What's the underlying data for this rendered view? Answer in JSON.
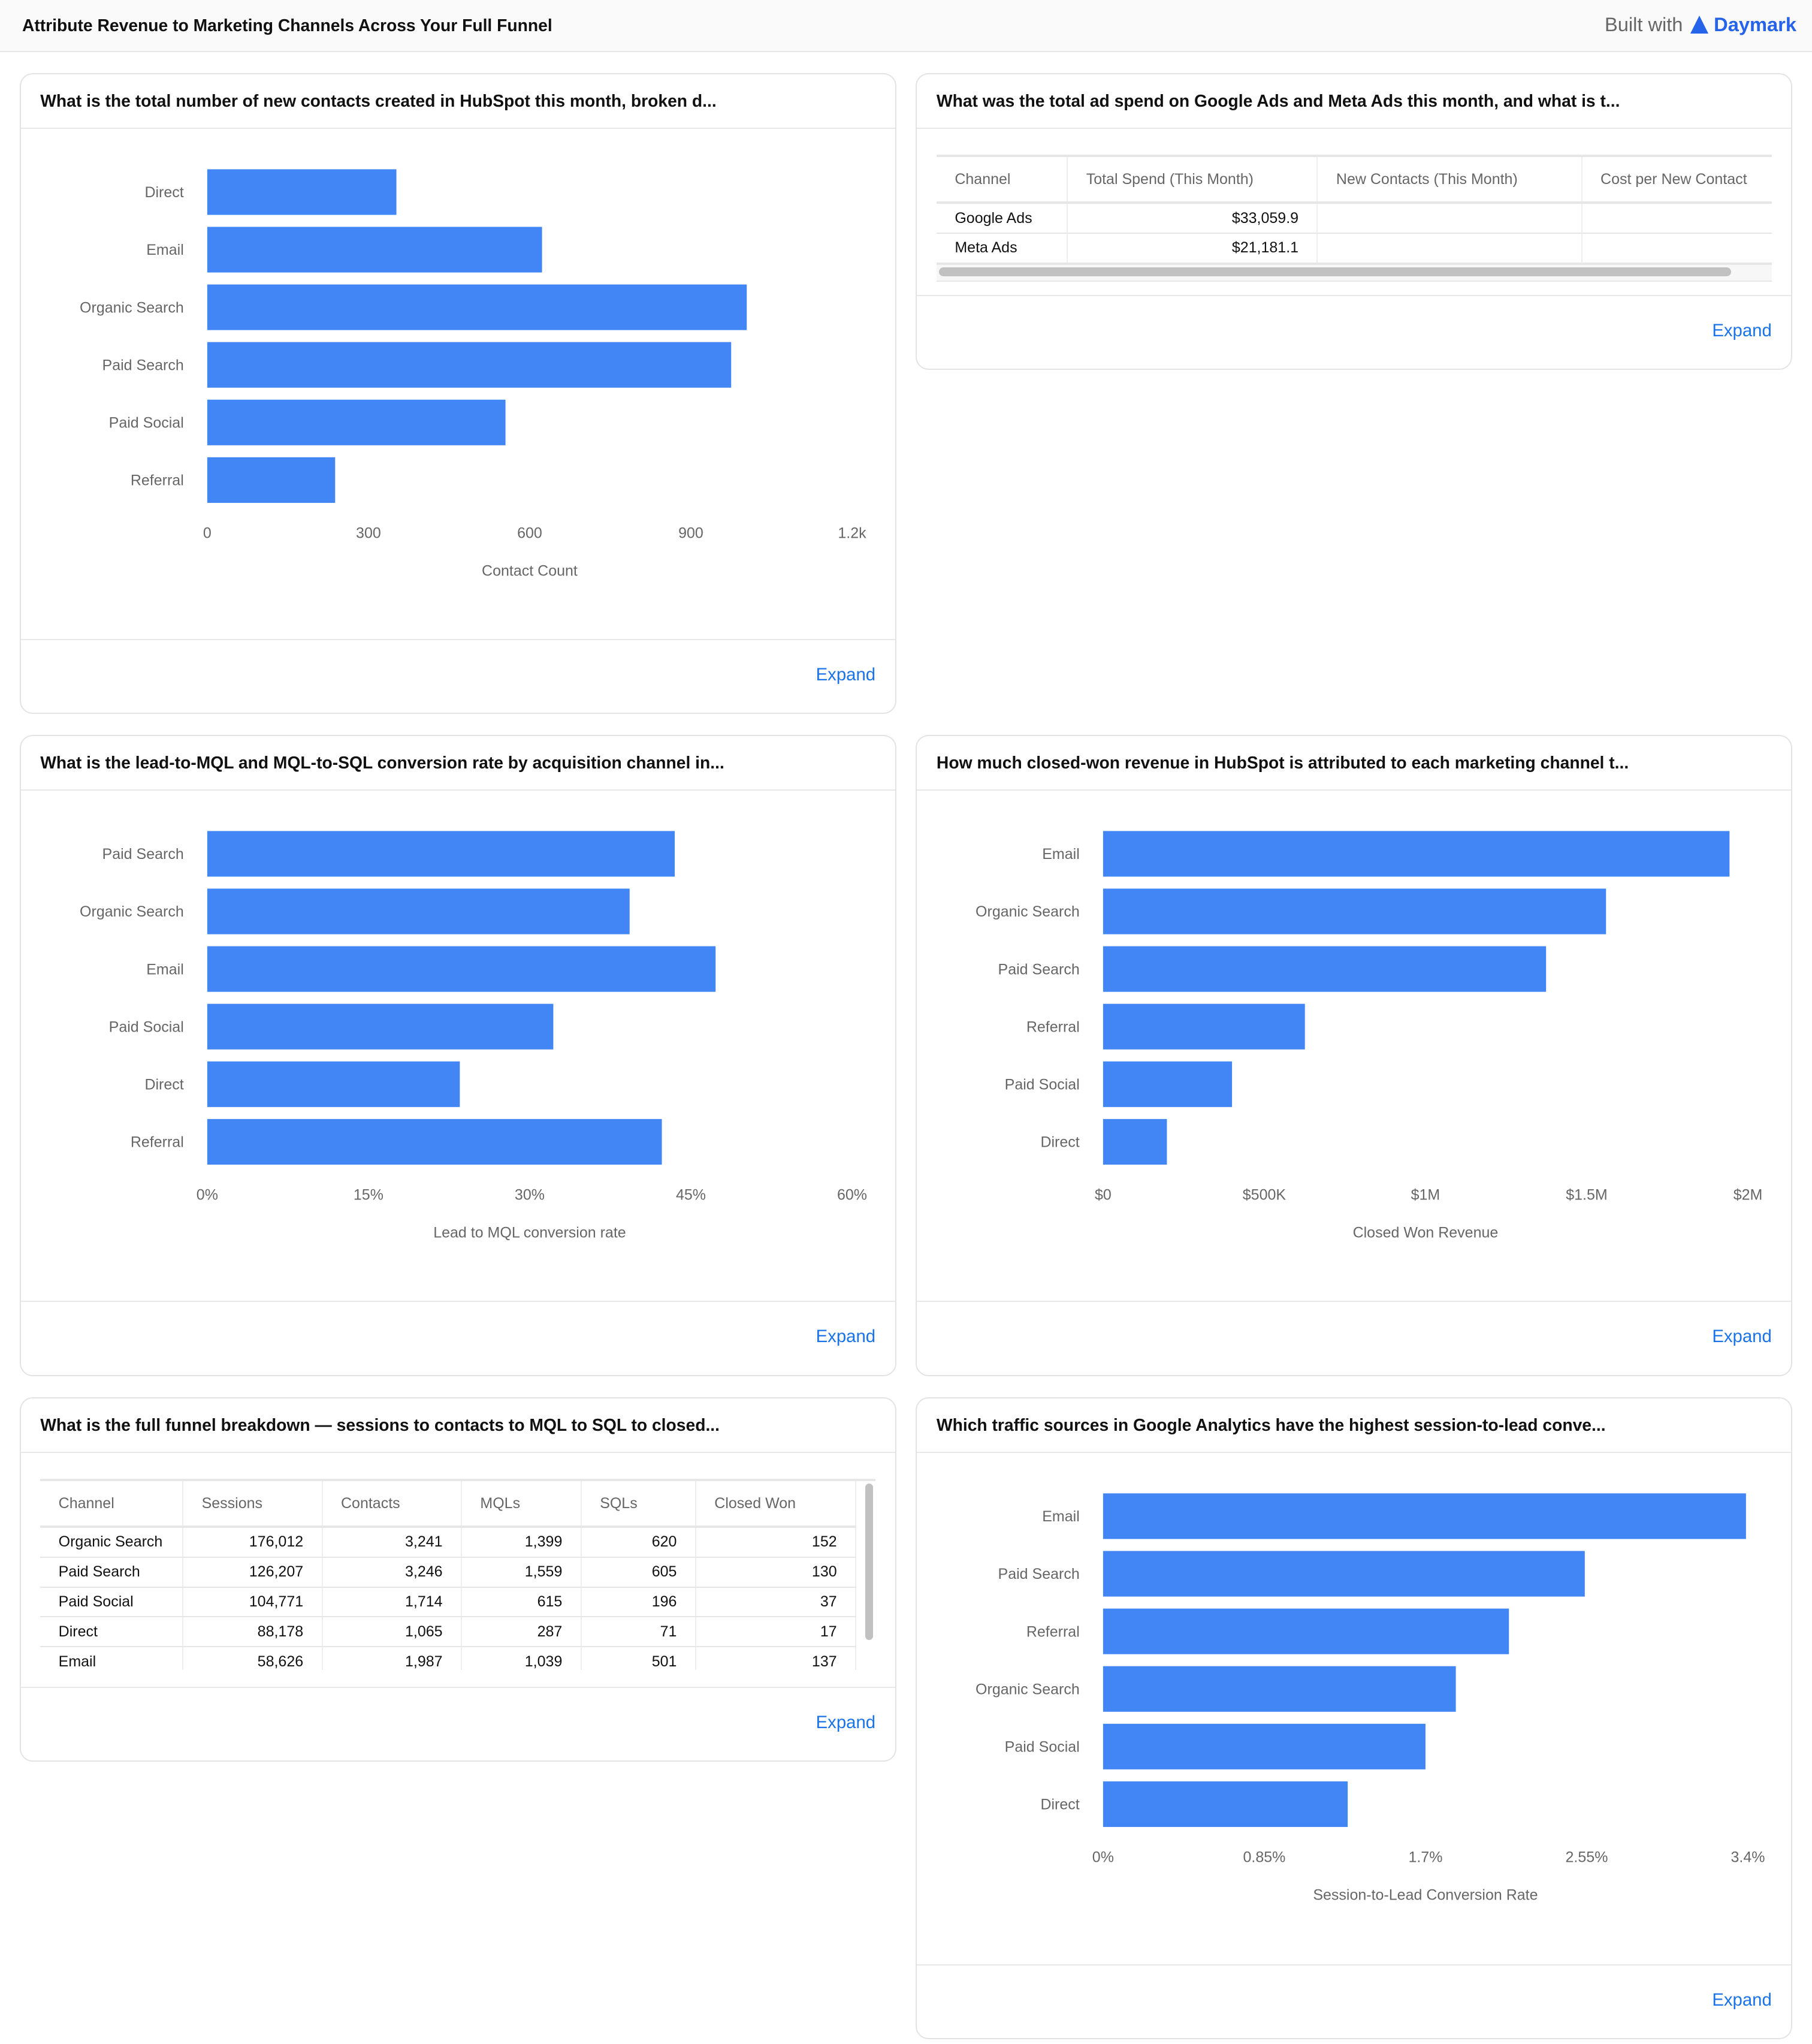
{
  "header": {
    "title": "Attribute Revenue to Marketing Channels Across Your Full Funnel",
    "built_with": "Built with",
    "brand": "Daymark"
  },
  "expand_label": "Expand",
  "colors": {
    "bar": "#4285f4",
    "link": "#1a73e8",
    "brand": "#2563eb"
  },
  "cards": {
    "contacts": {
      "title": "What is the total number of new contacts created in HubSpot this month, broken d..."
    },
    "adspend": {
      "title": "What was the total ad spend on Google Ads and Meta Ads this month, and what is t...",
      "columns": [
        "Channel",
        "Total Spend (This Month)",
        "New Contacts (This Month)",
        "Cost per New Contact"
      ],
      "rows": [
        [
          "Google Ads",
          "$33,059.9",
          "",
          ""
        ],
        [
          "Meta Ads",
          "$21,181.1",
          "",
          ""
        ]
      ]
    },
    "mql": {
      "title": "What is the lead-to-MQL and MQL-to-SQL conversion rate by acquisition channel in..."
    },
    "revenue": {
      "title": "How much closed-won revenue in HubSpot is attributed to each marketing channel t..."
    },
    "funnel": {
      "title": "What is the full funnel breakdown — sessions to contacts to MQL to SQL to closed...",
      "columns": [
        "Channel",
        "Sessions",
        "Contacts",
        "MQLs",
        "SQLs",
        "Closed Won"
      ],
      "rows": [
        [
          "Organic Search",
          "176,012",
          "3,241",
          "1,399",
          "620",
          "152"
        ],
        [
          "Paid Search",
          "126,207",
          "3,246",
          "1,559",
          "605",
          "130"
        ],
        [
          "Paid Social",
          "104,771",
          "1,714",
          "615",
          "196",
          "37"
        ],
        [
          "Direct",
          "88,178",
          "1,065",
          "287",
          "71",
          "17"
        ],
        [
          "Email",
          "58,626",
          "1,987",
          "1,039",
          "501",
          "137"
        ]
      ]
    },
    "traffic": {
      "title": "Which traffic sources in Google Analytics have the highest session-to-lead conve..."
    }
  },
  "chart_data": [
    {
      "type": "bar",
      "orientation": "horizontal",
      "categories": [
        "Direct",
        "Email",
        "Organic Search",
        "Paid Search",
        "Paid Social",
        "Referral"
      ],
      "values": [
        352,
        623,
        1004,
        975,
        555,
        238
      ],
      "xlabel": "Contact Count",
      "xlim": [
        0,
        1200
      ],
      "ticks": [
        "0",
        "300",
        "600",
        "900",
        "1.2k"
      ]
    },
    {
      "type": "bar",
      "orientation": "horizontal",
      "categories": [
        "Paid Search",
        "Organic Search",
        "Email",
        "Paid Social",
        "Direct",
        "Referral"
      ],
      "values": [
        43.5,
        39.3,
        47.3,
        32.2,
        23.5,
        42.3
      ],
      "xlabel": "Lead to MQL conversion rate",
      "xlim": [
        0,
        60
      ],
      "ticks": [
        "0%",
        "15%",
        "30%",
        "45%",
        "60%"
      ]
    },
    {
      "type": "bar",
      "orientation": "horizontal",
      "categories": [
        "Email",
        "Organic Search",
        "Paid Search",
        "Referral",
        "Paid Social",
        "Direct"
      ],
      "values": [
        1943000,
        1560000,
        1374000,
        626000,
        400000,
        198000
      ],
      "xlabel": "Closed Won Revenue",
      "xlim": [
        0,
        2000000
      ],
      "ticks": [
        "$0",
        "$500K",
        "$1M",
        "$1.5M",
        "$2M"
      ]
    },
    {
      "type": "bar",
      "orientation": "horizontal",
      "categories": [
        "Email",
        "Paid Search",
        "Referral",
        "Organic Search",
        "Paid Social",
        "Direct"
      ],
      "values": [
        3.39,
        2.54,
        2.14,
        1.86,
        1.7,
        1.29
      ],
      "xlabel": "Session-to-Lead Conversion Rate",
      "xlim": [
        0,
        3.4
      ],
      "ticks": [
        "0%",
        "0.85%",
        "1.7%",
        "2.55%",
        "3.4%"
      ]
    }
  ]
}
